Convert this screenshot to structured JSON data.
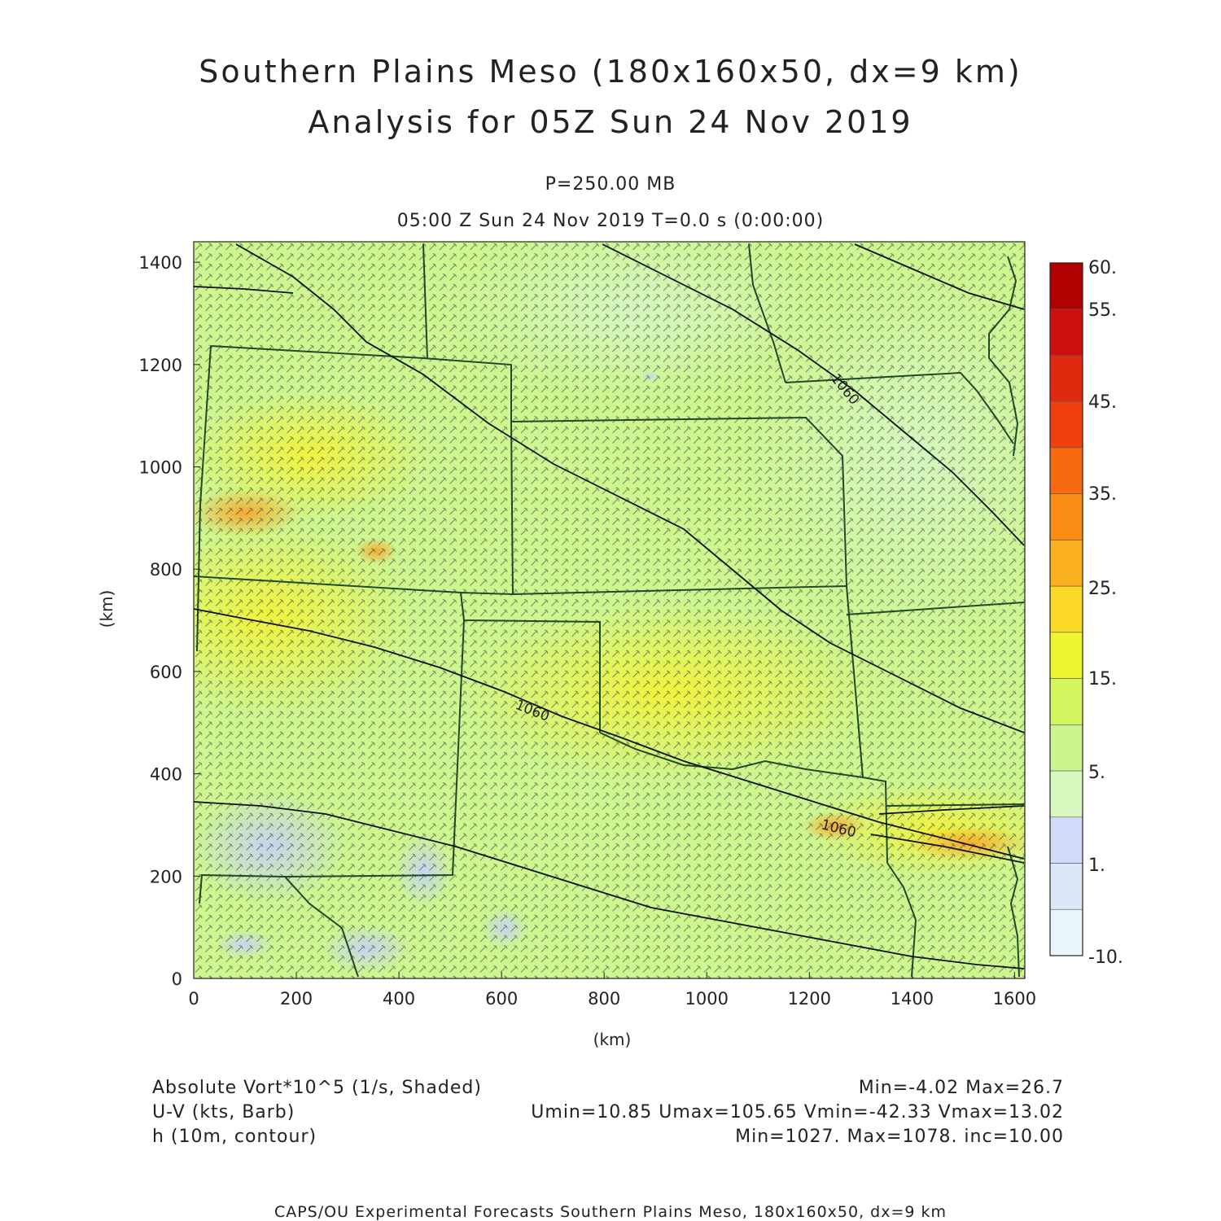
{
  "header": {
    "title_line1": "Southern Plains Meso (180x160x50, dx=9 km)",
    "title_line2": "Analysis for 05Z Sun 24 Nov 2019",
    "level": "P=250.00 MB",
    "valid_time": "05:00 Z Sun 24 Nov 2019    T=0.0 s (0:00:00)"
  },
  "axes": {
    "xlabel": "(km)",
    "ylabel": "(km)",
    "x_ticks": [
      "0",
      "200",
      "400",
      "600",
      "800",
      "1000",
      "1200",
      "1400",
      "1600"
    ],
    "y_ticks": [
      "0",
      "200",
      "400",
      "600",
      "800",
      "1000",
      "1200",
      "1400"
    ],
    "xlim": [
      0,
      1620
    ],
    "ylim": [
      0,
      1440
    ]
  },
  "colorbar": {
    "labels": [
      "60.",
      "55.",
      "45.",
      "35.",
      "25.",
      "15.",
      "5.",
      "1.",
      "-10."
    ],
    "colors": [
      "#b00000",
      "#cc1010",
      "#e02a10",
      "#f04010",
      "#f86a10",
      "#fa8c14",
      "#fbb020",
      "#fcd828",
      "#eef530",
      "#d2f560",
      "#ccf590",
      "#d8f8c0",
      "#d0dcf8",
      "#dce8f8",
      "#e8f6fc"
    ]
  },
  "contours": {
    "labels": [
      "1060",
      "1060",
      "1060"
    ]
  },
  "legend": {
    "shaded": "Absolute Vort*10^5 (1/s, Shaded)",
    "shaded_stats": "Min=-4.02 Max=26.7",
    "barb": "U-V (kts, Barb)",
    "barb_stats": "Umin=10.85 Umax=105.65 Vmin=-42.33 Vmax=13.02",
    "contour": "h (10m, contour)",
    "contour_stats": "Min=1027. Max=1078. inc=10.00"
  },
  "footer": {
    "text": "CAPS/OU Experimental Forecasts  Southern Plains Meso, 180x160x50, dx=9 km"
  },
  "map_colors": {
    "background": "#cdf590",
    "state_lines": "#1f4a2a",
    "contour_lines": "#111111"
  }
}
